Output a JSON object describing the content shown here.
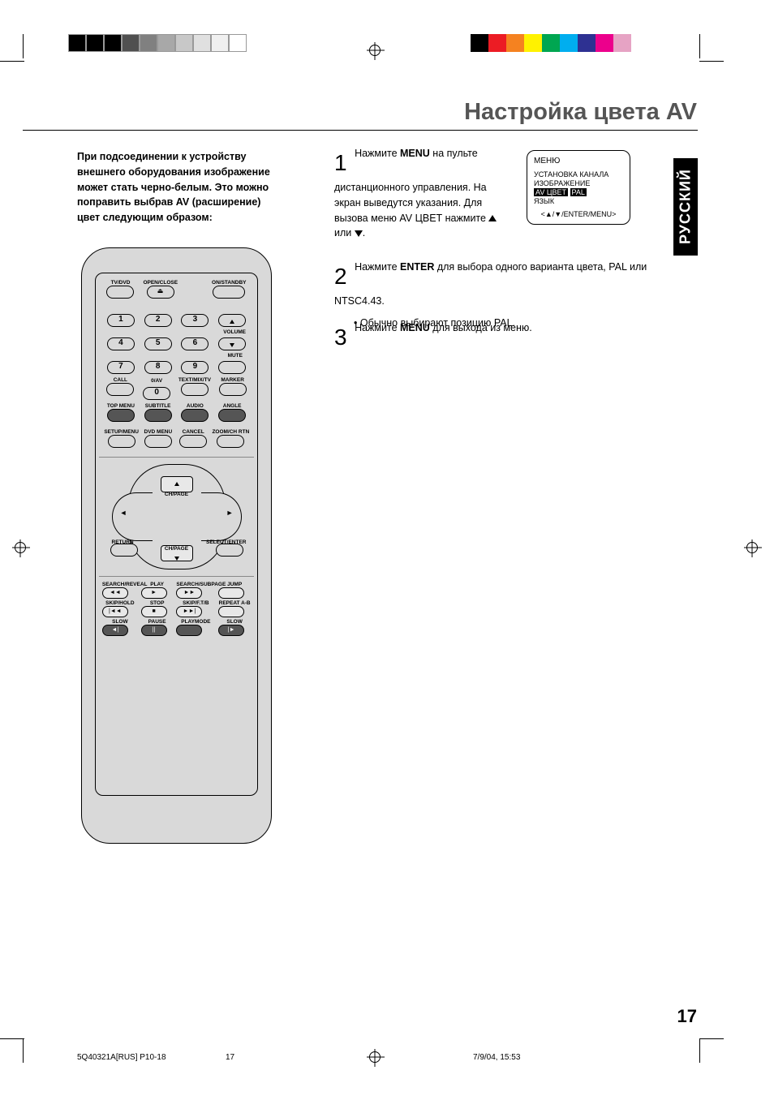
{
  "page": {
    "title": "Настройка цвета AV",
    "side_tab": "РУССКИЙ",
    "page_number": "17",
    "footer_doc": "5Q40321A[RUS] P10-18",
    "footer_page": "17",
    "footer_date": "7/9/04, 15:53"
  },
  "colors": {
    "text": "#000000",
    "title": "#555555",
    "bg": "#ffffff",
    "remote_bg": "#d9d9d9",
    "bar_left": [
      "#000000",
      "#000000",
      "#000000",
      "#505050",
      "#808080",
      "#a8a8a8",
      "#c8c8c8",
      "#e0e0e0",
      "#f0f0f0",
      "#ffffff"
    ],
    "bar_right": [
      "#000000",
      "#ec1c24",
      "#f58220",
      "#fff200",
      "#00a651",
      "#00aeef",
      "#2e3192",
      "#ec008c",
      "#e6a3c4",
      "#ffffff"
    ]
  },
  "intro": "При подсоединении к устройству внешнего оборудования изображение может стать черно-белым. Это можно поправить выбрав AV (расширение) цвет следующим образом:",
  "steps": {
    "s1": {
      "num": "1",
      "text_pre": "Нажмите ",
      "bold1": "MENU",
      "text_mid": " на пульте дистанционного управления. На экран выведутся указания. Для вызова меню AV ЦВЕТ нажмите ",
      "text_end": " или "
    },
    "s2": {
      "num": "2",
      "text_pre": "Нажмите ",
      "bold1": "ENTER",
      "text_post": " для выбора одного варианта цвета, PAL или NTSC4.43.",
      "bullet": "Обычно выбирают позицию PAL."
    },
    "s3": {
      "num": "3",
      "text_pre": "Нажмите ",
      "bold1": "MENU",
      "text_post": " для выхода из меню."
    }
  },
  "osd": {
    "title": "МЕНЮ",
    "line1": "УСТАНОВКА КАНАЛА",
    "line2": "ИЗОБРАЖЕНИЕ",
    "line3a": "AV ЦВЕТ",
    "line3b": "PAL",
    "line4": "ЯЗЫК",
    "footer": "<▲/▼/ENTER/MENU>"
  },
  "remote": {
    "top_labels": [
      "TV/DVD",
      "OPEN/CLOSE",
      "ON/STANDBY"
    ],
    "num_row1": [
      "1",
      "2",
      "3"
    ],
    "num_row2": [
      "4",
      "5",
      "6"
    ],
    "num_row3": [
      "7",
      "8",
      "9"
    ],
    "volume": "VOLUME",
    "mute": "MUTE",
    "row4_labels": [
      "CALL",
      "0/AV",
      "TEXT/MIX/TV",
      "MARKER"
    ],
    "num_zero": "0",
    "row5_labels": [
      "TOP MENU",
      "SUBTITLE",
      "AUDIO",
      "ANGLE"
    ],
    "row6_labels": [
      "SETUP/MENU",
      "DVD MENU",
      "CANCEL",
      "ZOOM/CH RTN"
    ],
    "nav": {
      "chpage": "CH/PAGE",
      "return": "RETURN",
      "select": "SELECT/ENTER"
    },
    "play_row1_labels": [
      "SEARCH/REVEAL",
      "PLAY",
      "SEARCH/SUBPAGE",
      "JUMP"
    ],
    "play_row1_icons": [
      "◄◄",
      "►",
      "►►",
      ""
    ],
    "play_row2_labels": [
      "SKIP/HOLD",
      "STOP",
      "SKIP/F.T/B",
      "REPEAT A-B"
    ],
    "play_row2_icons": [
      "|◄◄",
      "■",
      "►►|",
      ""
    ],
    "play_row3_labels": [
      "SLOW",
      "PAUSE",
      "PLAYMODE",
      "SLOW"
    ],
    "play_row3_icons": [
      "◄|",
      "||",
      "",
      "|►"
    ]
  }
}
